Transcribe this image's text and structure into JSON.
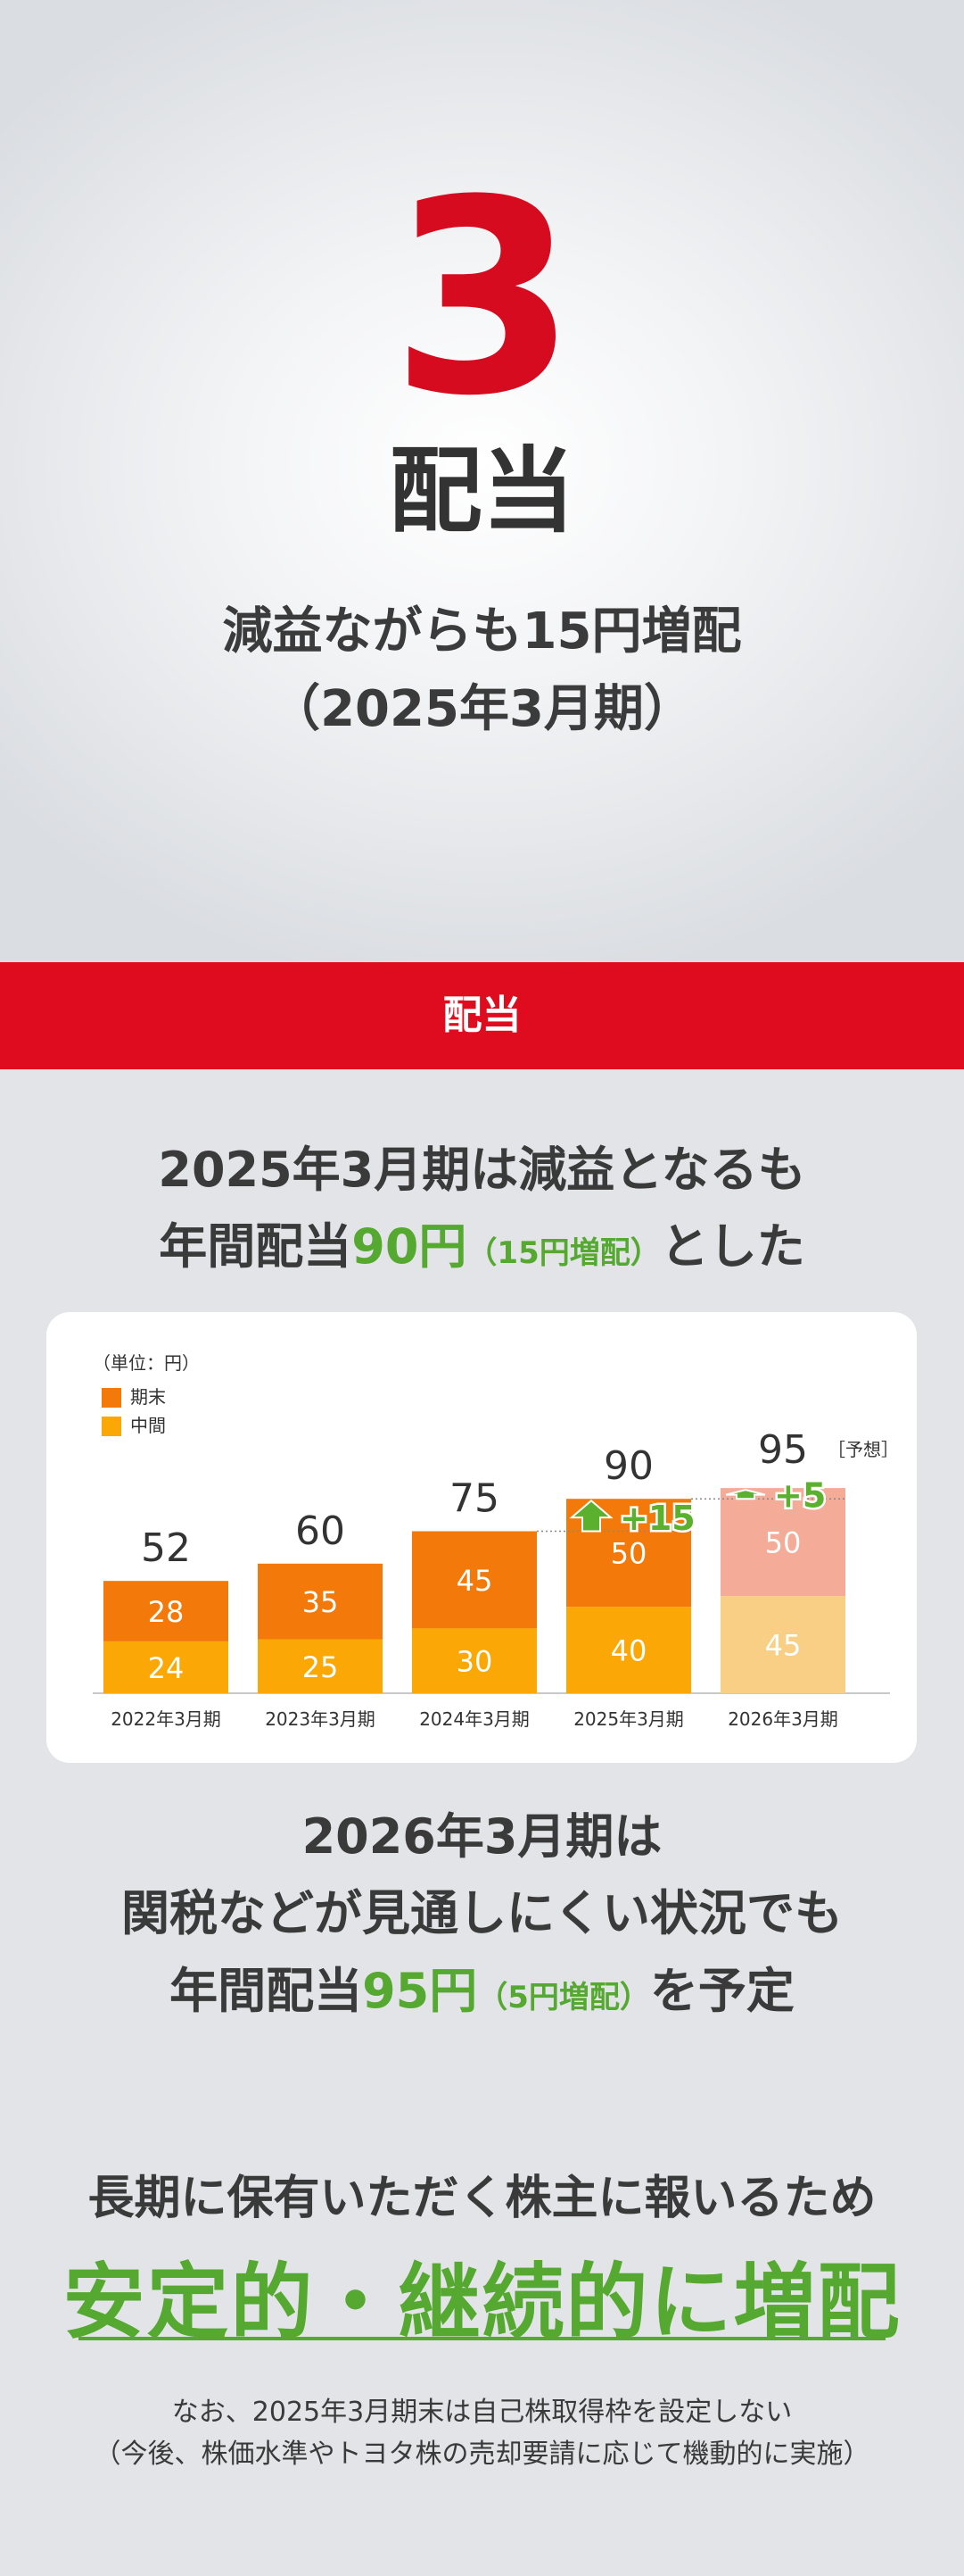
{
  "hero": {
    "number": "3",
    "title": "配当",
    "subtitle_line1": "減益ながらも15円増配",
    "subtitle_line2": "（2025年3月期）"
  },
  "band": {
    "label": "配当"
  },
  "headline1": {
    "line1": "2025年3月期は減益となるも",
    "line2_pre": "年間配当",
    "line2_amount": "90円",
    "line2_paren": "（15円増配）",
    "line2_post": "とした"
  },
  "chart_data": {
    "type": "bar",
    "stacked": true,
    "unit_label": "（単位：円）",
    "categories": [
      "2022年3月期",
      "2023年3月期",
      "2024年3月期",
      "2025年3月期",
      "2026年3月期"
    ],
    "series": [
      {
        "name": "中間",
        "values": [
          24,
          25,
          30,
          40,
          45
        ]
      },
      {
        "name": "期末",
        "values": [
          28,
          35,
          45,
          50,
          50
        ]
      }
    ],
    "legend_order": [
      "期末",
      "中間"
    ],
    "totals": [
      52,
      60,
      75,
      90,
      95
    ],
    "forecast_index": 4,
    "forecast_label": "［予想］",
    "increases": [
      {
        "index": 3,
        "label": "+15"
      },
      {
        "index": 4,
        "label": "+5"
      }
    ],
    "ylim": [
      0,
      100
    ],
    "legend_position": "top-left",
    "colors": {
      "interim": "#fba806",
      "year_end": "#f37a0a",
      "interim_forecast": "#f9cf86",
      "year_end_forecast": "#f4ab98",
      "arrow": "#5bb02d",
      "axis": "#b5b5b5"
    }
  },
  "headline2": {
    "line1": "2026年3月期は",
    "line2": "関税などが見通しにくい状況でも",
    "line3_pre": "年間配当",
    "line3_amount": "95円",
    "line3_paren": "（5円増配）",
    "line3_post": "を予定"
  },
  "headline3": "長期に保有いただく株主に報いるため",
  "headline4": "安定的・継続的に増配",
  "note": {
    "line1": "なお、2025年3月期末は自己株取得枠を設定しない",
    "line2": "（今後、株価水準やトヨタ株の売却要請に応じて機動的に実施）"
  }
}
